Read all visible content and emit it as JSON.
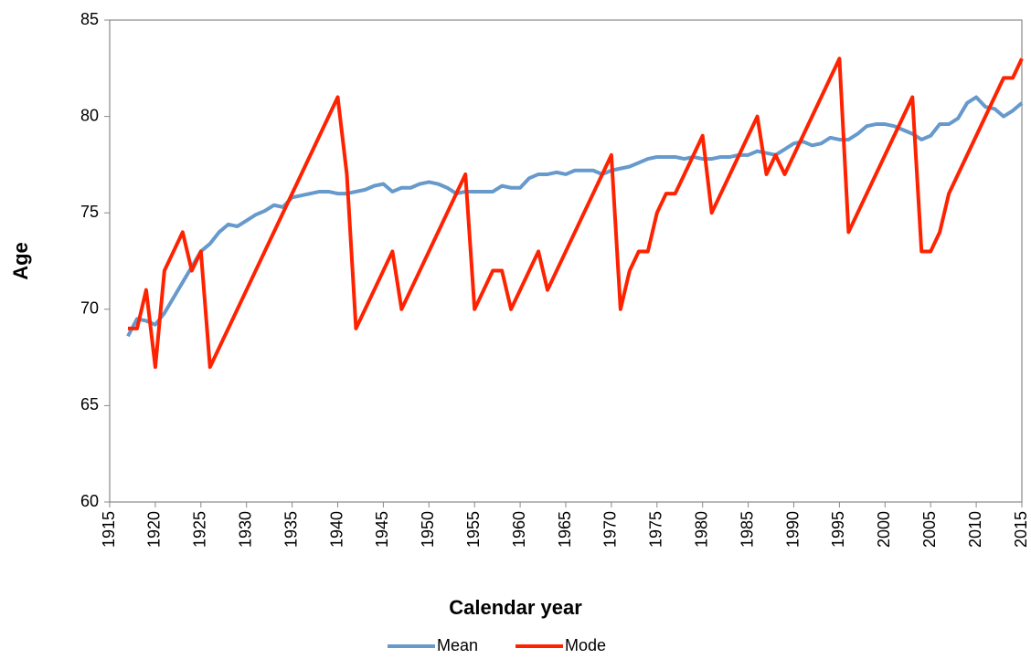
{
  "chart_data": {
    "type": "line",
    "xlabel": "Calendar year",
    "ylabel": "Age",
    "x": [
      1917,
      1918,
      1919,
      1920,
      1921,
      1922,
      1923,
      1924,
      1925,
      1926,
      1927,
      1928,
      1929,
      1930,
      1931,
      1932,
      1933,
      1934,
      1935,
      1936,
      1937,
      1938,
      1939,
      1940,
      1941,
      1942,
      1943,
      1944,
      1945,
      1946,
      1947,
      1948,
      1949,
      1950,
      1951,
      1952,
      1953,
      1954,
      1955,
      1956,
      1957,
      1958,
      1959,
      1960,
      1961,
      1962,
      1963,
      1964,
      1965,
      1966,
      1967,
      1968,
      1969,
      1970,
      1971,
      1972,
      1973,
      1974,
      1975,
      1976,
      1977,
      1978,
      1979,
      1980,
      1981,
      1982,
      1983,
      1984,
      1985,
      1986,
      1987,
      1988,
      1989,
      1990,
      1991,
      1992,
      1993,
      1994,
      1995,
      1996,
      1997,
      1998,
      1999,
      2000,
      2001,
      2002,
      2003,
      2004,
      2005,
      2006,
      2007,
      2008,
      2009,
      2010,
      2011,
      2012,
      2013,
      2014,
      2015
    ],
    "series": [
      {
        "name": "Mean",
        "color": "#6699cc",
        "values": [
          68.6,
          69.5,
          69.4,
          69.2,
          69.8,
          70.6,
          71.4,
          72.2,
          73.0,
          73.4,
          74.0,
          74.4,
          74.3,
          74.6,
          74.9,
          75.1,
          75.4,
          75.3,
          75.8,
          75.9,
          76.0,
          76.1,
          76.1,
          76.0,
          76.0,
          76.1,
          76.2,
          76.4,
          76.5,
          76.1,
          76.3,
          76.3,
          76.5,
          76.6,
          76.5,
          76.3,
          76.0,
          76.1,
          76.1,
          76.1,
          76.1,
          76.4,
          76.3,
          76.3,
          76.8,
          77.0,
          77.0,
          77.1,
          77.0,
          77.2,
          77.2,
          77.2,
          77.0,
          77.2,
          77.3,
          77.4,
          77.6,
          77.8,
          77.9,
          77.9,
          77.9,
          77.8,
          77.9,
          77.8,
          77.8,
          77.9,
          77.9,
          78.0,
          78.0,
          78.2,
          78.1,
          78.0,
          78.3,
          78.6,
          78.7,
          78.5,
          78.6,
          78.9,
          78.8,
          78.8,
          79.1,
          79.5,
          79.6,
          79.6,
          79.5,
          79.3,
          79.1,
          78.8,
          79.0,
          79.6,
          79.6,
          79.9,
          80.7,
          81.0,
          80.5,
          80.4,
          80.0,
          80.3,
          80.7
        ]
      },
      {
        "name": "Mode",
        "color": "#ff2200",
        "values": [
          69,
          69,
          71,
          67,
          72,
          73,
          74,
          72,
          73,
          67,
          68,
          69,
          70,
          71,
          72,
          73,
          74,
          75,
          76,
          77,
          78,
          79,
          80,
          81,
          77,
          69,
          70,
          71,
          72,
          73,
          70,
          71,
          72,
          73,
          74,
          75,
          76,
          77,
          70,
          71,
          72,
          72,
          70,
          71,
          72,
          73,
          71,
          72,
          73,
          74,
          75,
          76,
          77,
          78,
          70,
          72,
          73,
          73,
          75,
          76,
          76,
          77,
          78,
          79,
          75,
          76,
          77,
          78,
          79,
          80,
          77,
          78,
          77,
          78,
          79,
          80,
          81,
          82,
          83,
          74,
          75,
          76,
          77,
          78,
          79,
          80,
          81,
          73,
          73,
          74,
          76,
          77,
          78,
          79,
          80,
          81,
          82,
          82,
          83
        ]
      }
    ],
    "xlim": [
      1915,
      2015
    ],
    "xticks": [
      1915,
      1920,
      1925,
      1930,
      1935,
      1940,
      1945,
      1950,
      1955,
      1960,
      1965,
      1970,
      1975,
      1980,
      1985,
      1990,
      1995,
      2000,
      2005,
      2010,
      2015
    ],
    "ylim": [
      60,
      85
    ],
    "yticks": [
      60,
      65,
      70,
      75,
      80,
      85
    ],
    "grid": false,
    "legend": "bottom"
  }
}
